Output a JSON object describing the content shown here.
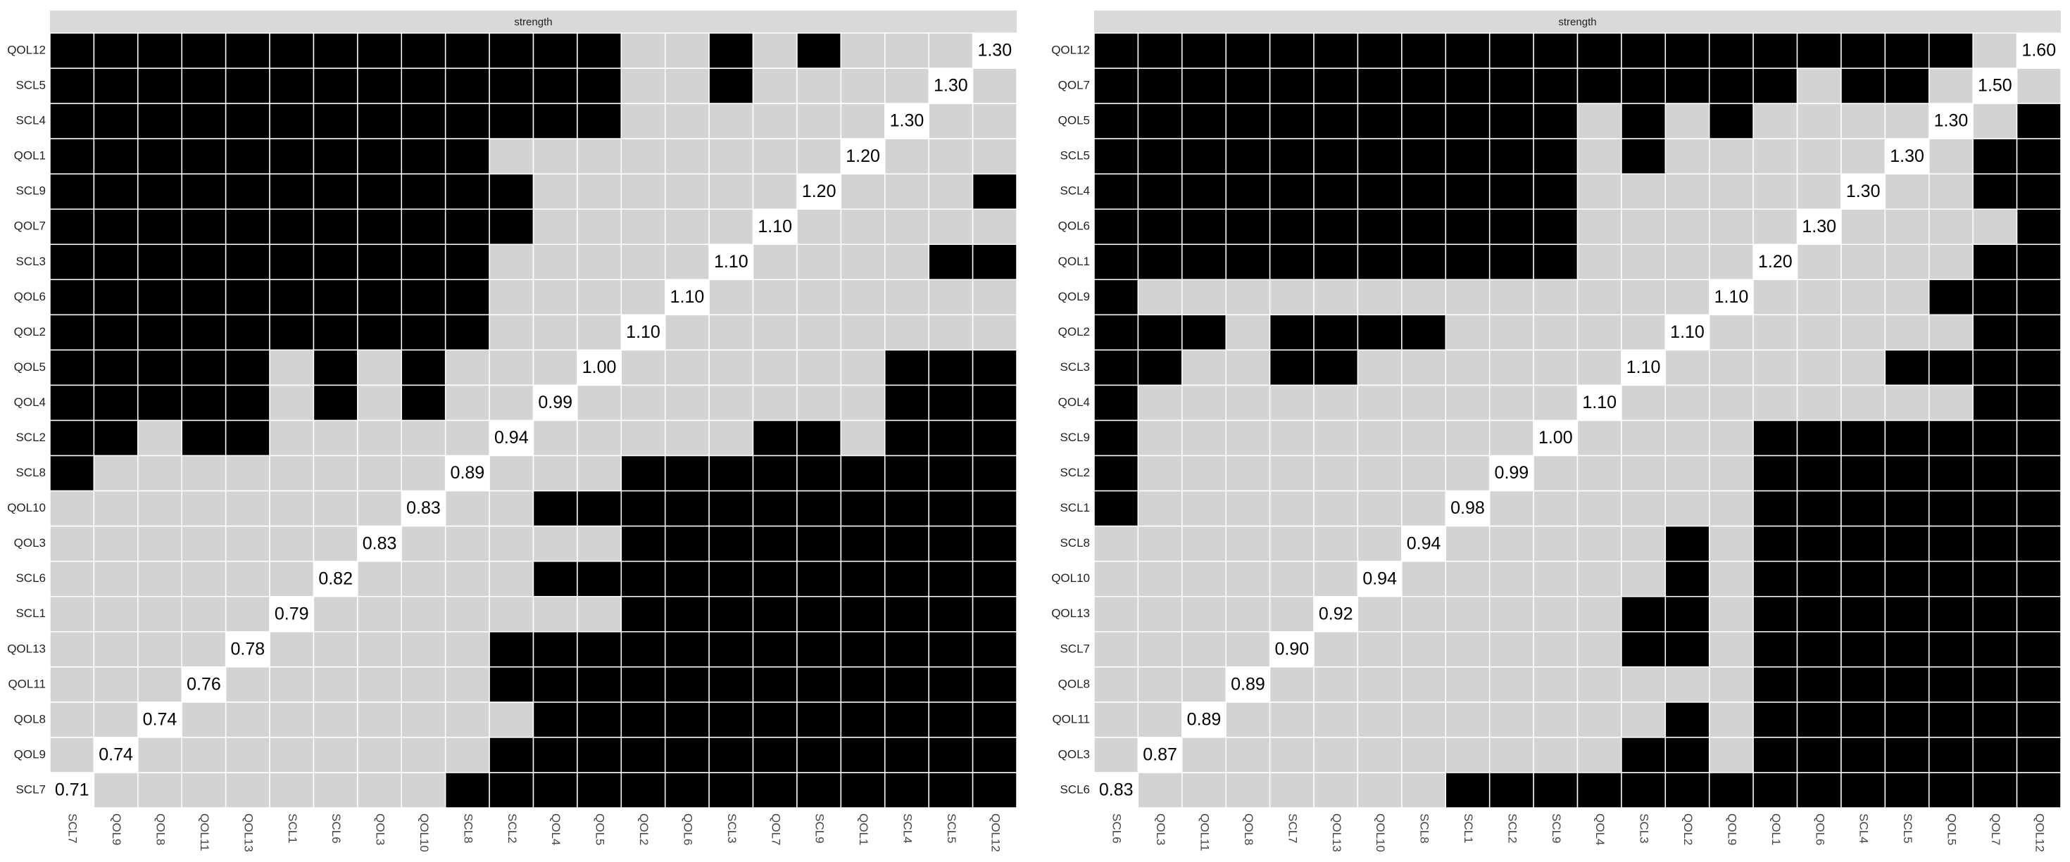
{
  "chart_data": [
    {
      "type": "heatmap",
      "title": "strength",
      "palette": [
        "#d3d3d3",
        "#000000"
      ],
      "diagonal_color": "#ffffff",
      "x": [
        "SCL7",
        "QOL9",
        "QOL8",
        "QOL11",
        "QOL13",
        "SCL1",
        "SCL6",
        "QOL3",
        "QOL10",
        "SCL8",
        "SCL2",
        "QOL4",
        "QOL5",
        "QOL2",
        "QOL6",
        "SCL3",
        "QOL7",
        "SCL9",
        "QOL1",
        "SCL4",
        "SCL5",
        "QOL12"
      ],
      "y": [
        "QOL12",
        "SCL5",
        "SCL4",
        "QOL1",
        "SCL9",
        "QOL7",
        "SCL3",
        "QOL6",
        "QOL2",
        "QOL5",
        "QOL4",
        "SCL2",
        "SCL8",
        "QOL10",
        "QOL3",
        "SCL6",
        "SCL1",
        "QOL13",
        "QOL11",
        "QOL8",
        "QOL9",
        "SCL7"
      ],
      "diagonal": [
        1.3,
        1.3,
        1.3,
        1.2,
        1.2,
        1.1,
        1.1,
        1.1,
        1.1,
        1.0,
        0.99,
        0.94,
        0.89,
        0.83,
        0.83,
        0.82,
        0.79,
        0.78,
        0.76,
        0.74,
        0.74,
        0.71
      ],
      "diagonal_labels": [
        "1.30",
        "1.30",
        "1.30",
        "1.20",
        "1.20",
        "1.10",
        "1.10",
        "1.10",
        "1.10",
        "1.00",
        "0.99",
        "0.94",
        "0.89",
        "0.83",
        "0.83",
        "0.82",
        "0.79",
        "0.78",
        "0.76",
        "0.74",
        "0.74",
        "0.71"
      ],
      "cells": [
        [
          1,
          1,
          1,
          1,
          1,
          1,
          1,
          1,
          1,
          1,
          1,
          1,
          1,
          0,
          0,
          1,
          0,
          1,
          0,
          0,
          0,
          null
        ],
        [
          1,
          1,
          1,
          1,
          1,
          1,
          1,
          1,
          1,
          1,
          1,
          1,
          1,
          0,
          0,
          1,
          0,
          0,
          0,
          0,
          null,
          0
        ],
        [
          1,
          1,
          1,
          1,
          1,
          1,
          1,
          1,
          1,
          1,
          1,
          1,
          1,
          0,
          0,
          0,
          0,
          0,
          0,
          null,
          0,
          0
        ],
        [
          1,
          1,
          1,
          1,
          1,
          1,
          1,
          1,
          1,
          1,
          0,
          0,
          0,
          0,
          0,
          0,
          0,
          0,
          null,
          0,
          0,
          0
        ],
        [
          1,
          1,
          1,
          1,
          1,
          1,
          1,
          1,
          1,
          1,
          1,
          0,
          0,
          0,
          0,
          0,
          0,
          null,
          0,
          0,
          0,
          1
        ],
        [
          1,
          1,
          1,
          1,
          1,
          1,
          1,
          1,
          1,
          1,
          1,
          0,
          0,
          0,
          0,
          0,
          null,
          0,
          0,
          0,
          0,
          0
        ],
        [
          1,
          1,
          1,
          1,
          1,
          1,
          1,
          1,
          1,
          1,
          0,
          0,
          0,
          0,
          0,
          null,
          0,
          0,
          0,
          0,
          1,
          1
        ],
        [
          1,
          1,
          1,
          1,
          1,
          1,
          1,
          1,
          1,
          1,
          0,
          0,
          0,
          0,
          null,
          0,
          0,
          0,
          0,
          0,
          0,
          0
        ],
        [
          1,
          1,
          1,
          1,
          1,
          1,
          1,
          1,
          1,
          1,
          0,
          0,
          0,
          null,
          0,
          0,
          0,
          0,
          0,
          0,
          0,
          0
        ],
        [
          1,
          1,
          1,
          1,
          1,
          0,
          1,
          0,
          1,
          0,
          0,
          0,
          null,
          0,
          0,
          0,
          0,
          0,
          0,
          1,
          1,
          1
        ],
        [
          1,
          1,
          1,
          1,
          1,
          0,
          1,
          0,
          1,
          0,
          0,
          null,
          0,
          0,
          0,
          0,
          0,
          0,
          0,
          1,
          1,
          1
        ],
        [
          1,
          1,
          0,
          1,
          1,
          0,
          0,
          0,
          0,
          0,
          null,
          0,
          0,
          0,
          0,
          0,
          1,
          1,
          0,
          1,
          1,
          1
        ],
        [
          1,
          0,
          0,
          0,
          0,
          0,
          0,
          0,
          0,
          null,
          0,
          0,
          0,
          1,
          1,
          1,
          1,
          1,
          1,
          1,
          1,
          1
        ],
        [
          0,
          0,
          0,
          0,
          0,
          0,
          0,
          0,
          null,
          0,
          0,
          1,
          1,
          1,
          1,
          1,
          1,
          1,
          1,
          1,
          1,
          1
        ],
        [
          0,
          0,
          0,
          0,
          0,
          0,
          0,
          null,
          0,
          0,
          0,
          0,
          0,
          1,
          1,
          1,
          1,
          1,
          1,
          1,
          1,
          1
        ],
        [
          0,
          0,
          0,
          0,
          0,
          0,
          null,
          0,
          0,
          0,
          0,
          1,
          1,
          1,
          1,
          1,
          1,
          1,
          1,
          1,
          1,
          1
        ],
        [
          0,
          0,
          0,
          0,
          0,
          null,
          0,
          0,
          0,
          0,
          0,
          0,
          0,
          1,
          1,
          1,
          1,
          1,
          1,
          1,
          1,
          1
        ],
        [
          0,
          0,
          0,
          0,
          null,
          0,
          0,
          0,
          0,
          0,
          1,
          1,
          1,
          1,
          1,
          1,
          1,
          1,
          1,
          1,
          1,
          1
        ],
        [
          0,
          0,
          0,
          null,
          0,
          0,
          0,
          0,
          0,
          0,
          1,
          1,
          1,
          1,
          1,
          1,
          1,
          1,
          1,
          1,
          1,
          1
        ],
        [
          0,
          0,
          null,
          0,
          0,
          0,
          0,
          0,
          0,
          0,
          0,
          1,
          1,
          1,
          1,
          1,
          1,
          1,
          1,
          1,
          1,
          1
        ],
        [
          0,
          null,
          0,
          0,
          0,
          0,
          0,
          0,
          0,
          0,
          1,
          1,
          1,
          1,
          1,
          1,
          1,
          1,
          1,
          1,
          1,
          1
        ],
        [
          null,
          0,
          0,
          0,
          0,
          0,
          0,
          0,
          0,
          1,
          1,
          1,
          1,
          1,
          1,
          1,
          1,
          1,
          1,
          1,
          1,
          1
        ]
      ]
    },
    {
      "type": "heatmap",
      "title": "strength",
      "palette": [
        "#d3d3d3",
        "#000000"
      ],
      "diagonal_color": "#ffffff",
      "x": [
        "SCL6",
        "QOL3",
        "QOL11",
        "QOL8",
        "SCL7",
        "QOL13",
        "QOL10",
        "SCL8",
        "SCL1",
        "SCL2",
        "SCL9",
        "QOL4",
        "SCL3",
        "QOL2",
        "QOL9",
        "QOL1",
        "QOL6",
        "SCL4",
        "SCL5",
        "QOL5",
        "QOL7",
        "QOL12"
      ],
      "y": [
        "QOL12",
        "QOL7",
        "QOL5",
        "SCL5",
        "SCL4",
        "QOL6",
        "QOL1",
        "QOL9",
        "QOL2",
        "SCL3",
        "QOL4",
        "SCL9",
        "SCL2",
        "SCL1",
        "SCL8",
        "QOL10",
        "QOL13",
        "SCL7",
        "QOL8",
        "QOL11",
        "QOL3",
        "SCL6"
      ],
      "diagonal": [
        1.6,
        1.5,
        1.3,
        1.3,
        1.3,
        1.3,
        1.2,
        1.1,
        1.1,
        1.1,
        1.1,
        1.0,
        0.99,
        0.98,
        0.94,
        0.94,
        0.92,
        0.9,
        0.89,
        0.89,
        0.87,
        0.83
      ],
      "diagonal_labels": [
        "1.60",
        "1.50",
        "1.30",
        "1.30",
        "1.30",
        "1.30",
        "1.20",
        "1.10",
        "1.10",
        "1.10",
        "1.10",
        "1.00",
        "0.99",
        "0.98",
        "0.94",
        "0.94",
        "0.92",
        "0.90",
        "0.89",
        "0.89",
        "0.87",
        "0.83"
      ],
      "cells": [
        [
          1,
          1,
          1,
          1,
          1,
          1,
          1,
          1,
          1,
          1,
          1,
          1,
          1,
          1,
          1,
          1,
          1,
          1,
          1,
          1,
          0,
          null
        ],
        [
          1,
          1,
          1,
          1,
          1,
          1,
          1,
          1,
          1,
          1,
          1,
          1,
          1,
          1,
          1,
          1,
          0,
          1,
          1,
          0,
          null,
          0
        ],
        [
          1,
          1,
          1,
          1,
          1,
          1,
          1,
          1,
          1,
          1,
          1,
          0,
          1,
          0,
          1,
          0,
          0,
          0,
          0,
          null,
          0,
          1
        ],
        [
          1,
          1,
          1,
          1,
          1,
          1,
          1,
          1,
          1,
          1,
          1,
          0,
          1,
          0,
          0,
          0,
          0,
          0,
          null,
          0,
          1,
          1
        ],
        [
          1,
          1,
          1,
          1,
          1,
          1,
          1,
          1,
          1,
          1,
          1,
          0,
          0,
          0,
          0,
          0,
          0,
          null,
          0,
          0,
          1,
          1
        ],
        [
          1,
          1,
          1,
          1,
          1,
          1,
          1,
          1,
          1,
          1,
          1,
          0,
          0,
          0,
          0,
          0,
          null,
          0,
          0,
          0,
          0,
          1
        ],
        [
          1,
          1,
          1,
          1,
          1,
          1,
          1,
          1,
          1,
          1,
          1,
          0,
          0,
          0,
          0,
          null,
          0,
          0,
          0,
          0,
          1,
          1
        ],
        [
          1,
          0,
          0,
          0,
          0,
          0,
          0,
          0,
          0,
          0,
          0,
          0,
          0,
          0,
          null,
          0,
          0,
          0,
          0,
          1,
          1,
          1
        ],
        [
          1,
          1,
          1,
          0,
          1,
          1,
          1,
          1,
          0,
          0,
          0,
          0,
          0,
          null,
          0,
          0,
          0,
          0,
          0,
          0,
          1,
          1
        ],
        [
          1,
          1,
          0,
          0,
          1,
          1,
          0,
          0,
          0,
          0,
          0,
          0,
          null,
          0,
          0,
          0,
          0,
          0,
          1,
          1,
          1,
          1
        ],
        [
          1,
          0,
          0,
          0,
          0,
          0,
          0,
          0,
          0,
          0,
          0,
          null,
          0,
          0,
          0,
          0,
          0,
          0,
          0,
          0,
          1,
          1
        ],
        [
          1,
          0,
          0,
          0,
          0,
          0,
          0,
          0,
          0,
          0,
          null,
          0,
          0,
          0,
          0,
          1,
          1,
          1,
          1,
          1,
          1,
          1
        ],
        [
          1,
          0,
          0,
          0,
          0,
          0,
          0,
          0,
          0,
          null,
          0,
          0,
          0,
          0,
          0,
          1,
          1,
          1,
          1,
          1,
          1,
          1
        ],
        [
          1,
          0,
          0,
          0,
          0,
          0,
          0,
          0,
          null,
          0,
          0,
          0,
          0,
          0,
          0,
          1,
          1,
          1,
          1,
          1,
          1,
          1
        ],
        [
          0,
          0,
          0,
          0,
          0,
          0,
          0,
          null,
          0,
          0,
          0,
          0,
          0,
          1,
          0,
          1,
          1,
          1,
          1,
          1,
          1,
          1
        ],
        [
          0,
          0,
          0,
          0,
          0,
          0,
          null,
          0,
          0,
          0,
          0,
          0,
          0,
          1,
          0,
          1,
          1,
          1,
          1,
          1,
          1,
          1
        ],
        [
          0,
          0,
          0,
          0,
          0,
          null,
          0,
          0,
          0,
          0,
          0,
          0,
          1,
          1,
          0,
          1,
          1,
          1,
          1,
          1,
          1,
          1
        ],
        [
          0,
          0,
          0,
          0,
          null,
          0,
          0,
          0,
          0,
          0,
          0,
          0,
          1,
          1,
          0,
          1,
          1,
          1,
          1,
          1,
          1,
          1
        ],
        [
          0,
          0,
          0,
          null,
          0,
          0,
          0,
          0,
          0,
          0,
          0,
          0,
          0,
          0,
          0,
          1,
          1,
          1,
          1,
          1,
          1,
          1
        ],
        [
          0,
          0,
          null,
          0,
          0,
          0,
          0,
          0,
          0,
          0,
          0,
          0,
          0,
          1,
          0,
          1,
          1,
          1,
          1,
          1,
          1,
          1
        ],
        [
          0,
          null,
          0,
          0,
          0,
          0,
          0,
          0,
          0,
          0,
          0,
          0,
          1,
          1,
          0,
          1,
          1,
          1,
          1,
          1,
          1,
          1
        ],
        [
          null,
          0,
          0,
          0,
          0,
          0,
          0,
          0,
          1,
          1,
          1,
          1,
          1,
          1,
          1,
          1,
          1,
          1,
          1,
          1,
          1,
          1
        ]
      ]
    }
  ]
}
